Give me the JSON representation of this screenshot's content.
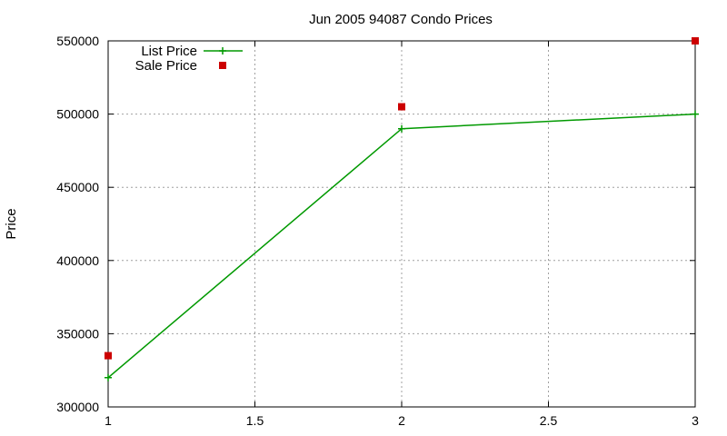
{
  "chart_data": {
    "type": "line",
    "title": "Jun 2005 94087 Condo Prices",
    "xlabel": "",
    "ylabel": "Price",
    "xlim": [
      1,
      3
    ],
    "ylim": [
      300000,
      550000
    ],
    "xticks": [
      "1",
      "1.5",
      "2",
      "2.5",
      "3"
    ],
    "yticks": [
      "300000",
      "350000",
      "400000",
      "450000",
      "500000",
      "550000"
    ],
    "grid": true,
    "legend_position": "top-left",
    "series": [
      {
        "name": "List Price",
        "style": "line-points",
        "marker": "plus",
        "color": "#009900",
        "x": [
          1,
          2,
          3
        ],
        "y": [
          320000,
          490000,
          500000
        ]
      },
      {
        "name": "Sale Price",
        "style": "points",
        "marker": "square",
        "color": "#cc0000",
        "x": [
          1,
          2,
          3
        ],
        "y": [
          335000,
          505000,
          550000
        ]
      }
    ]
  }
}
